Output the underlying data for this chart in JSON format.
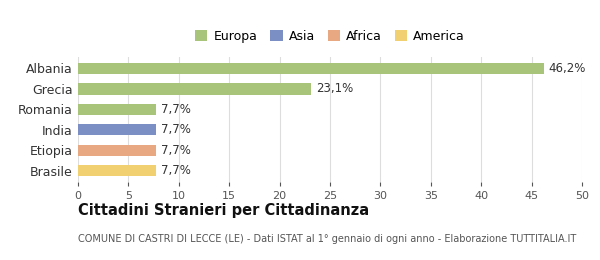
{
  "categories": [
    "Albania",
    "Grecia",
    "Romania",
    "India",
    "Etiopia",
    "Brasile"
  ],
  "values": [
    46.2,
    23.1,
    7.7,
    7.7,
    7.7,
    7.7
  ],
  "labels": [
    "46,2%",
    "23,1%",
    "7,7%",
    "7,7%",
    "7,7%",
    "7,7%"
  ],
  "bar_colors": [
    "#a8c47a",
    "#a8c47a",
    "#a8c47a",
    "#7b8fc4",
    "#e8a882",
    "#f0d070"
  ],
  "legend_labels": [
    "Europa",
    "Asia",
    "Africa",
    "America"
  ],
  "legend_colors": [
    "#a8c47a",
    "#7b8fc4",
    "#e8a882",
    "#f0d070"
  ],
  "xlim": [
    0,
    50
  ],
  "xticks": [
    0,
    5,
    10,
    15,
    20,
    25,
    30,
    35,
    40,
    45,
    50
  ],
  "title": "Cittadini Stranieri per Cittadinanza",
  "subtitle": "COMUNE DI CASTRI DI LECCE (LE) - Dati ISTAT al 1° gennaio di ogni anno - Elaborazione TUTTITALIA.IT",
  "background_color": "#ffffff",
  "grid_color": "#dddddd",
  "label_fontsize": 8.5,
  "title_fontsize": 10.5,
  "subtitle_fontsize": 7.0,
  "tick_fontsize": 8,
  "ylabel_fontsize": 9
}
